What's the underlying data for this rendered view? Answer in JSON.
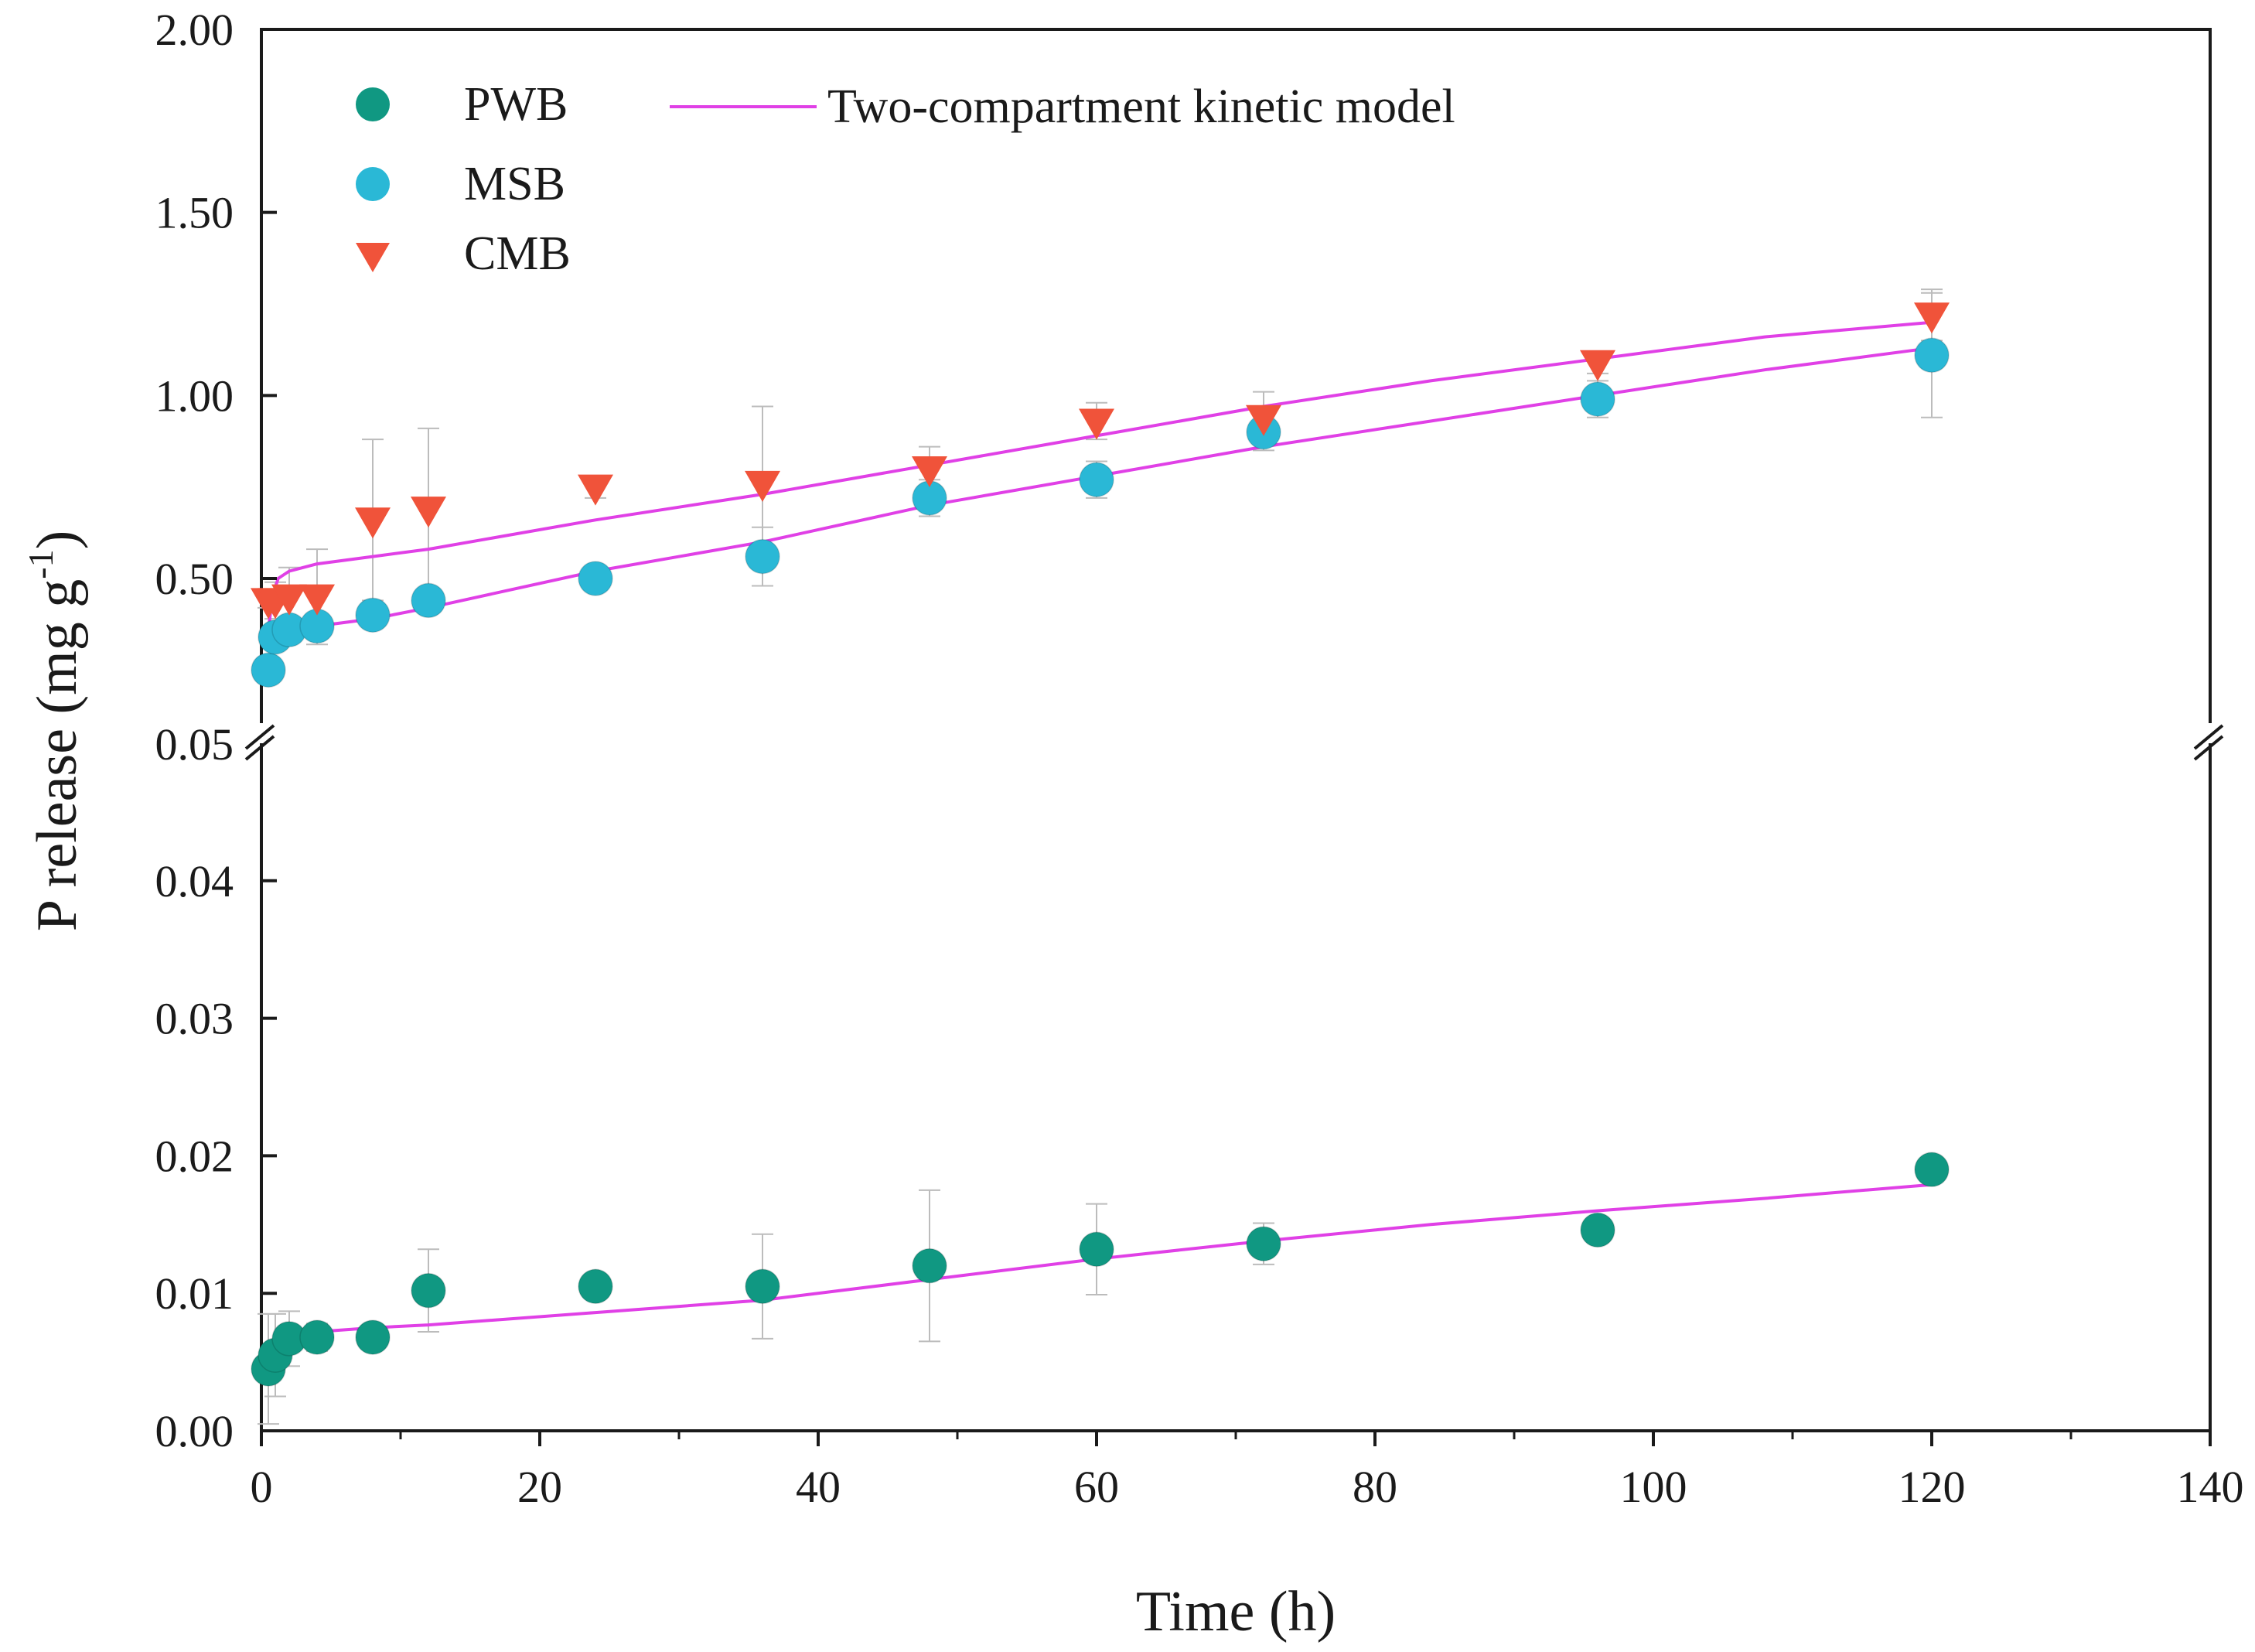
{
  "chart_data": {
    "type": "scatter",
    "xlabel": "Time (h)",
    "ylabel": "P release (mg g",
    "ylabel_sup": "-1",
    "ylabel_close": ")",
    "xlim": [
      0,
      140
    ],
    "x_ticks": [
      0,
      20,
      40,
      60,
      80,
      100,
      120,
      140
    ],
    "x_tick_labels": [
      "0",
      "20",
      "40",
      "60",
      "80",
      "100",
      "120",
      "140"
    ],
    "y_axis_break": true,
    "upper_ylim": [
      0.05,
      2.0
    ],
    "upper_ticks": [
      0.5,
      1.0,
      1.5,
      2.0
    ],
    "upper_tick_labels": [
      "0.50",
      "1.00",
      "1.50",
      "2.00"
    ],
    "break_label": "0.05",
    "lower_ylim": [
      0.0,
      0.05
    ],
    "lower_ticks": [
      0.0,
      0.01,
      0.02,
      0.03,
      0.04
    ],
    "lower_tick_labels": [
      "0.00",
      "0.01",
      "0.02",
      "0.03",
      "0.04"
    ],
    "legend": {
      "position": "top-left",
      "entries": [
        {
          "label": "PWB",
          "marker": "circle",
          "color": "#109882"
        },
        {
          "label": "MSB",
          "marker": "circle",
          "color": "#2ab8d6"
        },
        {
          "label": "CMB",
          "marker": "triangle-down",
          "color": "#f0533a"
        },
        {
          "label": "Two-compartment kinetic model",
          "marker": "line",
          "color": "#e040e6"
        }
      ]
    },
    "series": [
      {
        "name": "PWB",
        "panel": "lower",
        "marker": "circle",
        "color": "#109882",
        "x": [
          0.5,
          1,
          2,
          4,
          8,
          12,
          24,
          36,
          48,
          60,
          72,
          96,
          120
        ],
        "y": [
          0.0045,
          0.0055,
          0.0067,
          0.0068,
          0.0068,
          0.0102,
          0.0105,
          0.0105,
          0.012,
          0.0132,
          0.0136,
          0.0146,
          0.019
        ],
        "err": [
          0.004,
          0.003,
          0.002,
          0.001,
          0.0005,
          0.003,
          0.0008,
          0.0038,
          0.0055,
          0.0033,
          0.0015,
          0.0008,
          0.0008
        ]
      },
      {
        "name": "MSB",
        "panel": "upper",
        "marker": "circle",
        "color": "#2ab8d6",
        "x": [
          0.5,
          1,
          2,
          4,
          8,
          12,
          24,
          36,
          48,
          60,
          72,
          96,
          120
        ],
        "y": [
          0.25,
          0.34,
          0.36,
          0.37,
          0.4,
          0.44,
          0.5,
          0.56,
          0.72,
          0.77,
          0.9,
          0.99,
          1.11
        ],
        "err": [
          0.01,
          0.02,
          0.02,
          0.02,
          0.02,
          0.02,
          0.02,
          0.08,
          0.05,
          0.05,
          0.05,
          0.05,
          0.17
        ]
      },
      {
        "name": "CMB",
        "panel": "upper",
        "marker": "triangle-down",
        "color": "#f0533a",
        "x": [
          0.5,
          1,
          2,
          4,
          8,
          12,
          24,
          36,
          48,
          60,
          72,
          96,
          120
        ],
        "y": [
          0.44,
          0.44,
          0.45,
          0.45,
          0.66,
          0.69,
          0.75,
          0.76,
          0.8,
          0.93,
          0.94,
          1.09,
          1.22
        ],
        "err": [
          0.02,
          0.05,
          0.08,
          0.13,
          0.22,
          0.22,
          0.03,
          0.21,
          0.06,
          0.05,
          0.07,
          0.03,
          0.07
        ]
      }
    ],
    "model_curves": [
      {
        "name": "Two-compartment kinetic model (CMB)",
        "panel": "upper",
        "color": "#e040e6",
        "x": [
          0.5,
          0.8,
          1.2,
          2,
          4,
          8,
          12,
          24,
          36,
          48,
          60,
          72,
          84,
          96,
          108,
          120
        ],
        "y": [
          0.36,
          0.45,
          0.5,
          0.52,
          0.54,
          0.56,
          0.58,
          0.66,
          0.73,
          0.81,
          0.89,
          0.97,
          1.04,
          1.1,
          1.16,
          1.2
        ]
      },
      {
        "name": "Two-compartment kinetic model (MSB)",
        "panel": "upper",
        "color": "#e040e6",
        "x": [
          0.5,
          0.8,
          1.2,
          2,
          4,
          8,
          12,
          24,
          36,
          48,
          60,
          72,
          84,
          96,
          108,
          120
        ],
        "y": [
          0.24,
          0.31,
          0.34,
          0.35,
          0.37,
          0.39,
          0.42,
          0.52,
          0.6,
          0.7,
          0.78,
          0.86,
          0.93,
          1.0,
          1.07,
          1.13
        ]
      },
      {
        "name": "Two-compartment kinetic model (PWB)",
        "panel": "lower",
        "color": "#e040e6",
        "x": [
          0.5,
          0.8,
          1.2,
          2,
          4,
          8,
          12,
          24,
          36,
          48,
          60,
          72,
          84,
          96,
          108,
          120
        ],
        "y": [
          0.0045,
          0.0058,
          0.0065,
          0.007,
          0.0072,
          0.0075,
          0.0077,
          0.0086,
          0.0095,
          0.011,
          0.0125,
          0.0138,
          0.015,
          0.016,
          0.0169,
          0.0179
        ]
      }
    ]
  }
}
